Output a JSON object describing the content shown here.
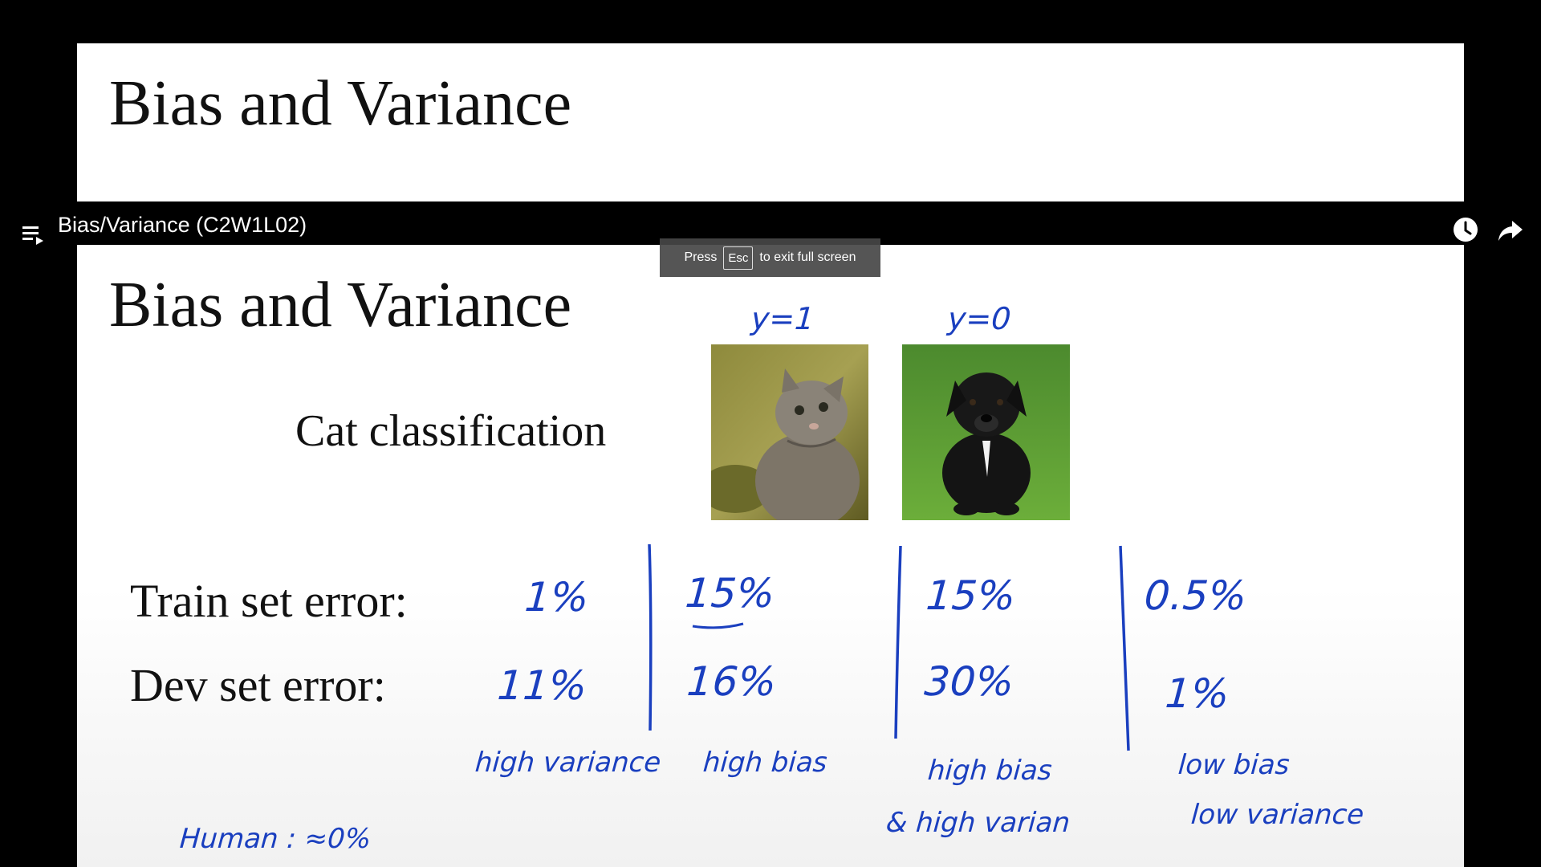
{
  "slide_title_top": "Bias and Variance",
  "video_title": "Bias/Variance (C2W1L02)",
  "fullscreen_toast": {
    "press": "Press",
    "key": "Esc",
    "rest": "to exit full screen"
  },
  "slide": {
    "title": "Bias and Variance",
    "subtitle": "Cat classification",
    "train_label": "Train set error:",
    "dev_label": "Dev set error:",
    "label_cat": "y=1",
    "label_dog": "y=0",
    "columns": [
      {
        "train": "1%",
        "dev": "11%",
        "diagnosis": "high variance"
      },
      {
        "train": "15%",
        "dev": "16%",
        "diagnosis": "high bias"
      },
      {
        "train": "15%",
        "dev": "30%",
        "diagnosis_line1": "high bias",
        "diagnosis_line2": "& high varian"
      },
      {
        "train": "0.5%",
        "dev": "1%",
        "diagnosis_line1": "low bias",
        "diagnosis_line2": "low variance"
      }
    ],
    "human_note": "Human : ≈0%"
  },
  "icons": [
    "playlist-icon",
    "watch-later-icon",
    "share-icon"
  ],
  "colors": {
    "ink": "#1a3fbf",
    "background": "#000000",
    "slide": "#ffffff"
  }
}
